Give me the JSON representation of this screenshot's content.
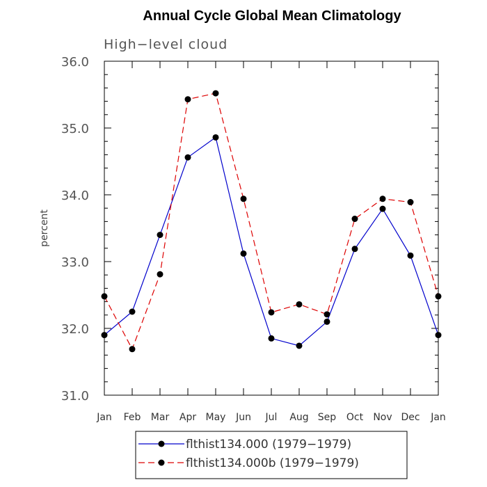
{
  "chart_data": {
    "type": "line",
    "title": "Annual Cycle Global Mean Climatology",
    "subtitle": "High−level cloud",
    "ylabel": "percent",
    "xlabel": "",
    "categories": [
      "Jan",
      "Feb",
      "Mar",
      "Apr",
      "May",
      "Jun",
      "Jul",
      "Aug",
      "Sep",
      "Oct",
      "Nov",
      "Dec",
      "Jan"
    ],
    "ylim": [
      31.0,
      36.0
    ],
    "yticks": [
      "31.0",
      "32.0",
      "33.0",
      "34.0",
      "35.0",
      "36.0"
    ],
    "grid": false,
    "legend_position": "bottom",
    "series": [
      {
        "name": "flthist134.000 (1979−1979)",
        "color": "#0000cc",
        "line_style": "solid",
        "marker": "filled-circle",
        "values": [
          31.9,
          32.25,
          33.4,
          34.56,
          34.86,
          33.12,
          31.85,
          31.74,
          32.1,
          33.19,
          33.79,
          33.09,
          31.9
        ]
      },
      {
        "name": "flthist134.000b (1979−1979)",
        "color": "#dd0000",
        "line_style": "dashed",
        "marker": "filled-circle",
        "values": [
          32.48,
          31.69,
          32.81,
          35.43,
          35.52,
          33.94,
          32.24,
          32.36,
          32.21,
          33.64,
          33.94,
          33.89,
          32.48
        ]
      }
    ]
  }
}
